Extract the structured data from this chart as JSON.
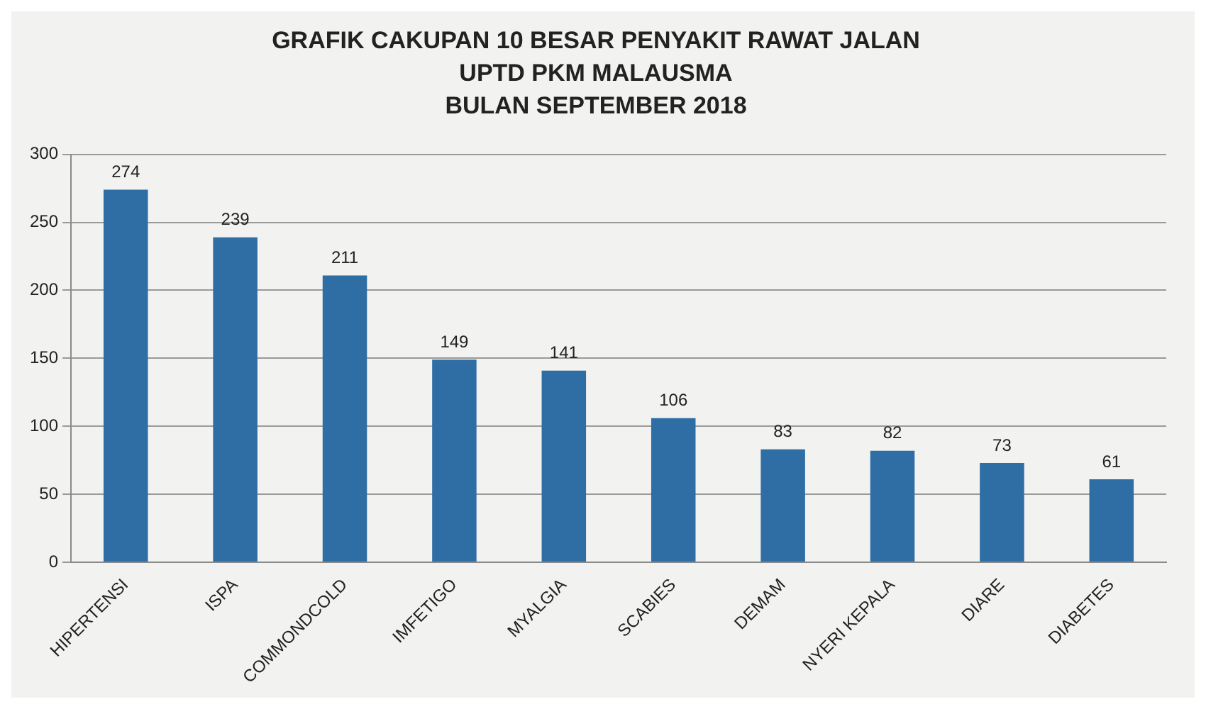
{
  "chart_data": {
    "type": "bar",
    "title": "GRAFIK CAKUPAN 10 BESAR PENYAKIT RAWAT JALAN\nUPTD PKM MALAUSMA\nBULAN SEPTEMBER 2018",
    "categories": [
      "HIPERTENSI",
      "ISPA",
      "COMMONDCOLD",
      "IMFETIGO",
      "MYALGIA",
      "SCABIES",
      "DEMAM",
      "NYERI KEPALA",
      "DIARE",
      "DIABETES"
    ],
    "values": [
      274,
      239,
      211,
      149,
      141,
      106,
      83,
      82,
      73,
      61
    ],
    "color": "#2f6ea5",
    "ylim": [
      0,
      300
    ],
    "yticks": [
      0,
      50,
      100,
      150,
      200,
      250,
      300
    ],
    "grid": "y",
    "data_labels": true
  }
}
